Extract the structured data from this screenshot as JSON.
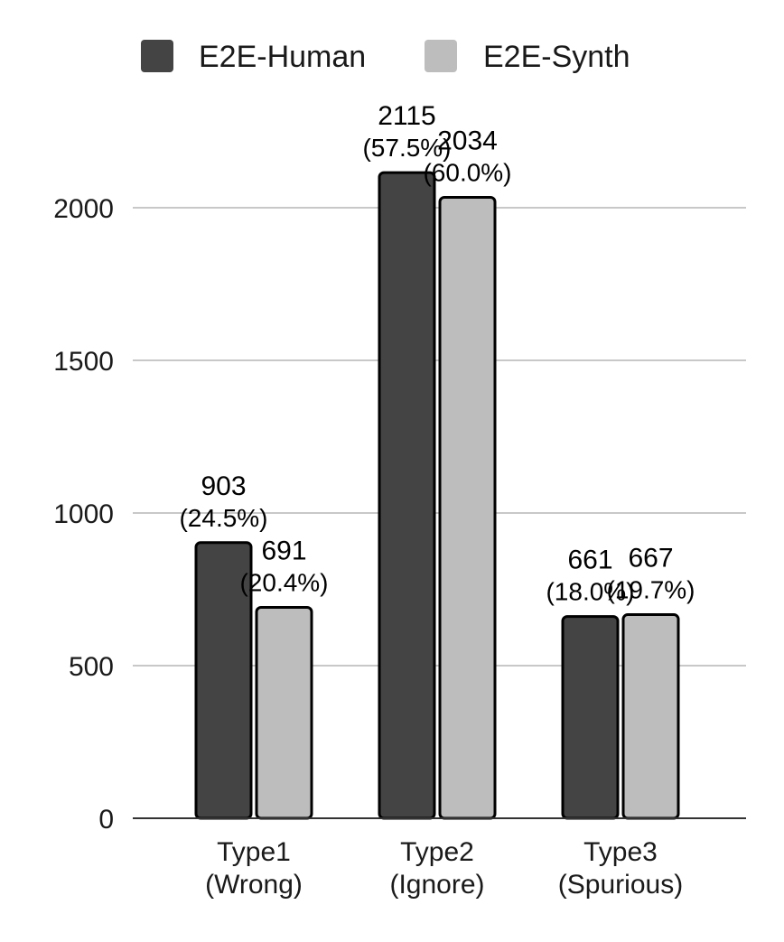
{
  "chart_data": {
    "type": "bar",
    "categories": [
      [
        "Type1",
        "(Wrong)"
      ],
      [
        "Type2",
        "(Ignore)"
      ],
      [
        "Type3",
        "(Spurious)"
      ]
    ],
    "series": [
      {
        "name": "E2E-Human",
        "color": "#444444",
        "values": [
          903,
          2115,
          661
        ],
        "percent_labels": [
          "(24.5%)",
          "(57.5%)",
          "(18.0%)"
        ]
      },
      {
        "name": "E2E-Synth",
        "color": "#bdbdbd",
        "values": [
          691,
          2034,
          667
        ],
        "percent_labels": [
          "(20.4%)",
          "(60.0%)",
          "(19.7%)"
        ]
      }
    ],
    "yticks": [
      0,
      500,
      1000,
      1500,
      2000
    ],
    "ylim": [
      0,
      2200
    ],
    "grid": true,
    "legend_position": "top"
  }
}
